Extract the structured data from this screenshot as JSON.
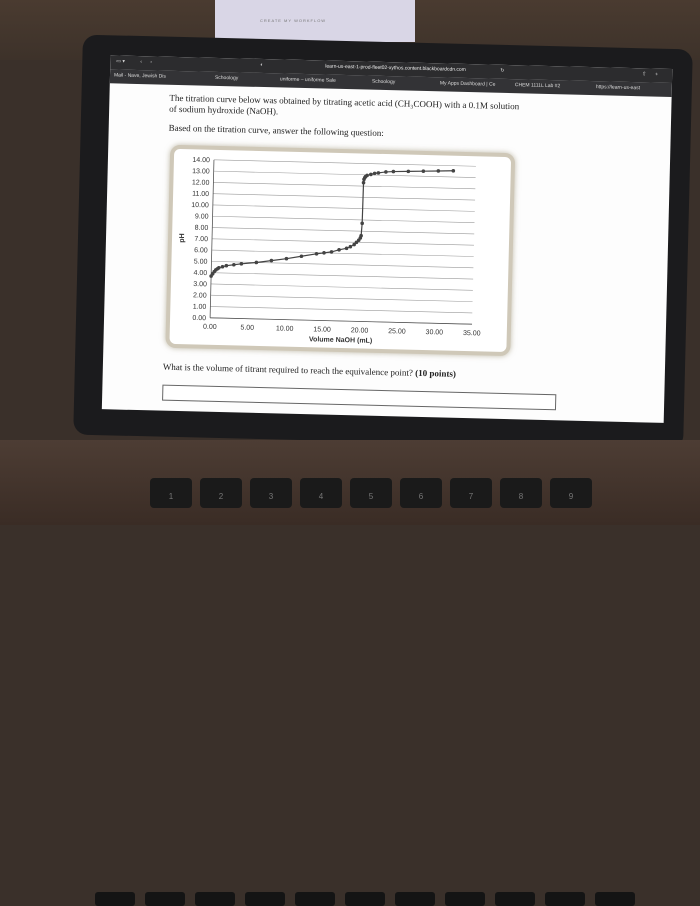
{
  "background": {
    "document_title": "CREATE MY WORKFLOW"
  },
  "browser": {
    "url": "learn-us-east-1-prod-fleet02-xythos.content.blackboardcdn.com",
    "bookmarks": [
      "Mail - Nave, Jewish Dis",
      "Schoology",
      "uniforme – uniforme Sale",
      "Schoology",
      "My Apps Dashboard | Ce",
      "CHEM 1111L Lab #2",
      "https://learn-us-east"
    ]
  },
  "question": {
    "line1": "The titration curve below was obtained by titrating acetic acid (CH₃COOH) with a 0.1M solution",
    "line2": "of sodium hydroxide (NaOH).",
    "instruction": "Based on the titration curve, answer the following question:",
    "prompt_text": "What is the volume of titrant required to reach the equivalence point?",
    "prompt_points": "(10 points)"
  },
  "chart_data": {
    "type": "scatter",
    "title": "",
    "xlabel": "Volume NaOH (mL)",
    "ylabel": "pH",
    "xlim": [
      0,
      35
    ],
    "ylim": [
      0,
      14
    ],
    "x_ticks": [
      "0.00",
      "5.00",
      "10.00",
      "15.00",
      "20.00",
      "25.00",
      "30.00",
      "35.00"
    ],
    "y_ticks": [
      "0.00",
      "1.00",
      "2.00",
      "3.00",
      "4.00",
      "5.00",
      "6.00",
      "7.00",
      "8.00",
      "9.00",
      "10.00",
      "11.00",
      "12.00",
      "13.00",
      "14.00"
    ],
    "grid": true,
    "line_color": "#444444",
    "series": [
      {
        "x": [
          0.0,
          0.2,
          0.4,
          0.6,
          0.8,
          1.0,
          1.5,
          2.0,
          3.0,
          4.0,
          6.0,
          8.0,
          10.0,
          12.0,
          14.0,
          15.0,
          16.0,
          17.0,
          18.0,
          18.5,
          19.0,
          19.3,
          19.6,
          19.8,
          19.9,
          20.0,
          20.05,
          20.1,
          20.2,
          20.3,
          20.5,
          21.0,
          21.5,
          22.0,
          23.0,
          24.0,
          26.0,
          28.0,
          30.0,
          32.0
        ],
        "y": [
          3.7,
          3.9,
          4.1,
          4.25,
          4.35,
          4.45,
          4.55,
          4.65,
          4.75,
          4.85,
          5.0,
          5.2,
          5.4,
          5.65,
          5.9,
          6.0,
          6.1,
          6.3,
          6.45,
          6.6,
          6.8,
          7.0,
          7.2,
          7.4,
          7.6,
          8.7,
          12.3,
          12.6,
          12.75,
          12.85,
          12.95,
          13.05,
          13.15,
          13.2,
          13.3,
          13.35,
          13.4,
          13.45,
          13.5,
          13.55
        ]
      }
    ]
  },
  "keyboard": {
    "keys": [
      "1",
      "2",
      "3",
      "4",
      "5",
      "6",
      "7",
      "8",
      "9"
    ]
  }
}
